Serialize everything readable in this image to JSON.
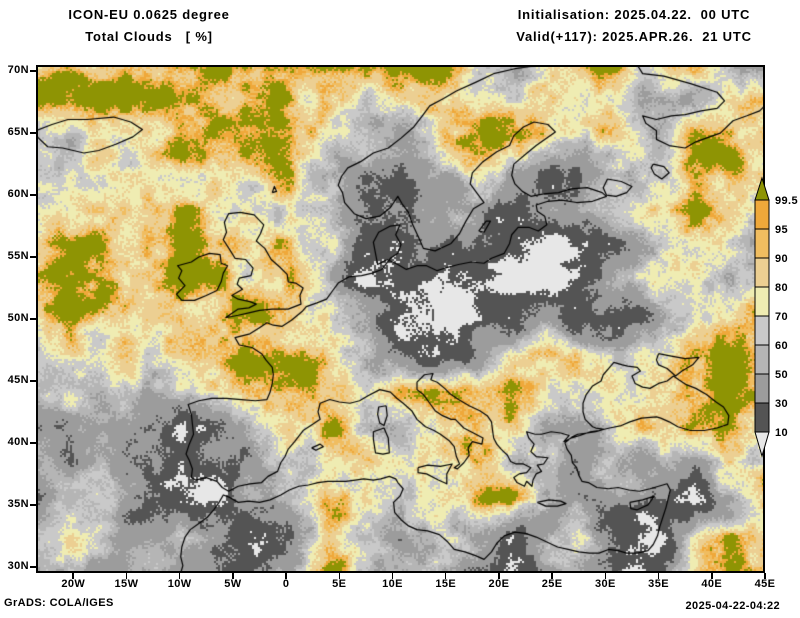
{
  "header": {
    "model_line": "ICON-EU 0.0625 degree",
    "param_line": "Total Clouds   [ %]",
    "init_line": "Initialisation: 2025.04.22.  00 UTC",
    "valid_line": "Valid(+117): 2025.APR.26.  21 UTC"
  },
  "footer": {
    "credit": "GrADS: COLA/IGES",
    "timestamp": "2025-04-22-04:22"
  },
  "map": {
    "projection": "latlon",
    "lon_min": -23.5,
    "lon_max": 45.0,
    "lat_min": 29.5,
    "lat_max": 70.5,
    "x_tick_lons": [
      -20,
      -15,
      -10,
      -5,
      0,
      5,
      10,
      15,
      20,
      25,
      30,
      35,
      40,
      45
    ],
    "x_tick_labels": [
      "20W",
      "15W",
      "10W",
      "5W",
      "0",
      "5E",
      "10E",
      "15E",
      "20E",
      "25E",
      "30E",
      "35E",
      "40E",
      "45E"
    ],
    "y_tick_lats": [
      70,
      65,
      60,
      55,
      50,
      45,
      40,
      35,
      30
    ],
    "y_tick_labels": [
      "70N",
      "65N",
      "60N",
      "55N",
      "50N",
      "45N",
      "40N",
      "35N",
      "30N"
    ]
  },
  "colorbar": {
    "tick_labels": [
      "99.5",
      "95",
      "90",
      "80",
      "70",
      "60",
      "50",
      "30",
      "10"
    ]
  },
  "chart_data": {
    "type": "heatmap",
    "title": "Total Clouds [ %]",
    "units": "%",
    "levels": [
      10,
      30,
      50,
      60,
      70,
      80,
      90,
      95,
      99.5
    ],
    "palette": [
      "#e7e7e7",
      "#545454",
      "#9c9c9c",
      "#b5b5b5",
      "#c9c9c9",
      "#efecb2",
      "#eccf92",
      "#f0bd60",
      "#efa83a",
      "#8e9404"
    ],
    "grid": {
      "lon_start": -23.5,
      "lon_end": 45.0,
      "lat_start": 70.5,
      "lat_end": 29.5,
      "cols": 21,
      "rows": 15,
      "values": [
        [
          100,
          100,
          100,
          100,
          97,
          100,
          100,
          100,
          100,
          92,
          100,
          97,
          70,
          60,
          85,
          95,
          100,
          75,
          90,
          55,
          45
        ],
        [
          100,
          100,
          100,
          100,
          100,
          97,
          100,
          97,
          90,
          70,
          75,
          100,
          80,
          70,
          85,
          90,
          75,
          50,
          60,
          92,
          100
        ],
        [
          60,
          50,
          70,
          85,
          100,
          100,
          100,
          97,
          90,
          60,
          40,
          75,
          97,
          100,
          85,
          70,
          80,
          60,
          97,
          100,
          90
        ],
        [
          60,
          75,
          85,
          90,
          80,
          70,
          85,
          97,
          60,
          30,
          20,
          50,
          70,
          40,
          20,
          40,
          55,
          70,
          97,
          100,
          90
        ],
        [
          85,
          97,
          100,
          100,
          90,
          80,
          65,
          80,
          70,
          40,
          20,
          30,
          50,
          20,
          35,
          50,
          60,
          90,
          100,
          92,
          70
        ],
        [
          92,
          100,
          100,
          100,
          97,
          92,
          80,
          85,
          55,
          35,
          25,
          15,
          35,
          15,
          10,
          20,
          40,
          70,
          97,
          80,
          60
        ],
        [
          88,
          100,
          100,
          100,
          100,
          88,
          78,
          88,
          55,
          15,
          5,
          5,
          15,
          5,
          5,
          25,
          50,
          80,
          70,
          50,
          70
        ],
        [
          75,
          92,
          85,
          78,
          92,
          97,
          100,
          100,
          80,
          35,
          5,
          5,
          5,
          15,
          35,
          15,
          5,
          35,
          60,
          80,
          97
        ],
        [
          55,
          75,
          85,
          75,
          92,
          100,
          100,
          100,
          92,
          70,
          50,
          10,
          35,
          70,
          92,
          70,
          50,
          70,
          97,
          100,
          97
        ],
        [
          40,
          55,
          65,
          55,
          75,
          88,
          97,
          100,
          92,
          75,
          85,
          100,
          100,
          97,
          75,
          55,
          75,
          92,
          100,
          92,
          85
        ],
        [
          40,
          55,
          45,
          30,
          8,
          20,
          55,
          92,
          100,
          75,
          55,
          85,
          100,
          85,
          55,
          40,
          65,
          85,
          100,
          95,
          75
        ],
        [
          55,
          40,
          55,
          40,
          8,
          20,
          40,
          65,
          85,
          75,
          85,
          60,
          75,
          55,
          40,
          55,
          45,
          40,
          55,
          65,
          85
        ],
        [
          45,
          55,
          60,
          40,
          20,
          8,
          40,
          75,
          100,
          85,
          55,
          75,
          92,
          100,
          55,
          40,
          40,
          20,
          8,
          40,
          92
        ],
        [
          55,
          65,
          55,
          40,
          55,
          40,
          20,
          40,
          75,
          55,
          40,
          55,
          40,
          20,
          40,
          55,
          20,
          8,
          55,
          100,
          100
        ],
        [
          40,
          55,
          45,
          55,
          40,
          30,
          40,
          55,
          100,
          75,
          55,
          65,
          40,
          20,
          55,
          40,
          8,
          20,
          75,
          100,
          95
        ]
      ]
    }
  }
}
